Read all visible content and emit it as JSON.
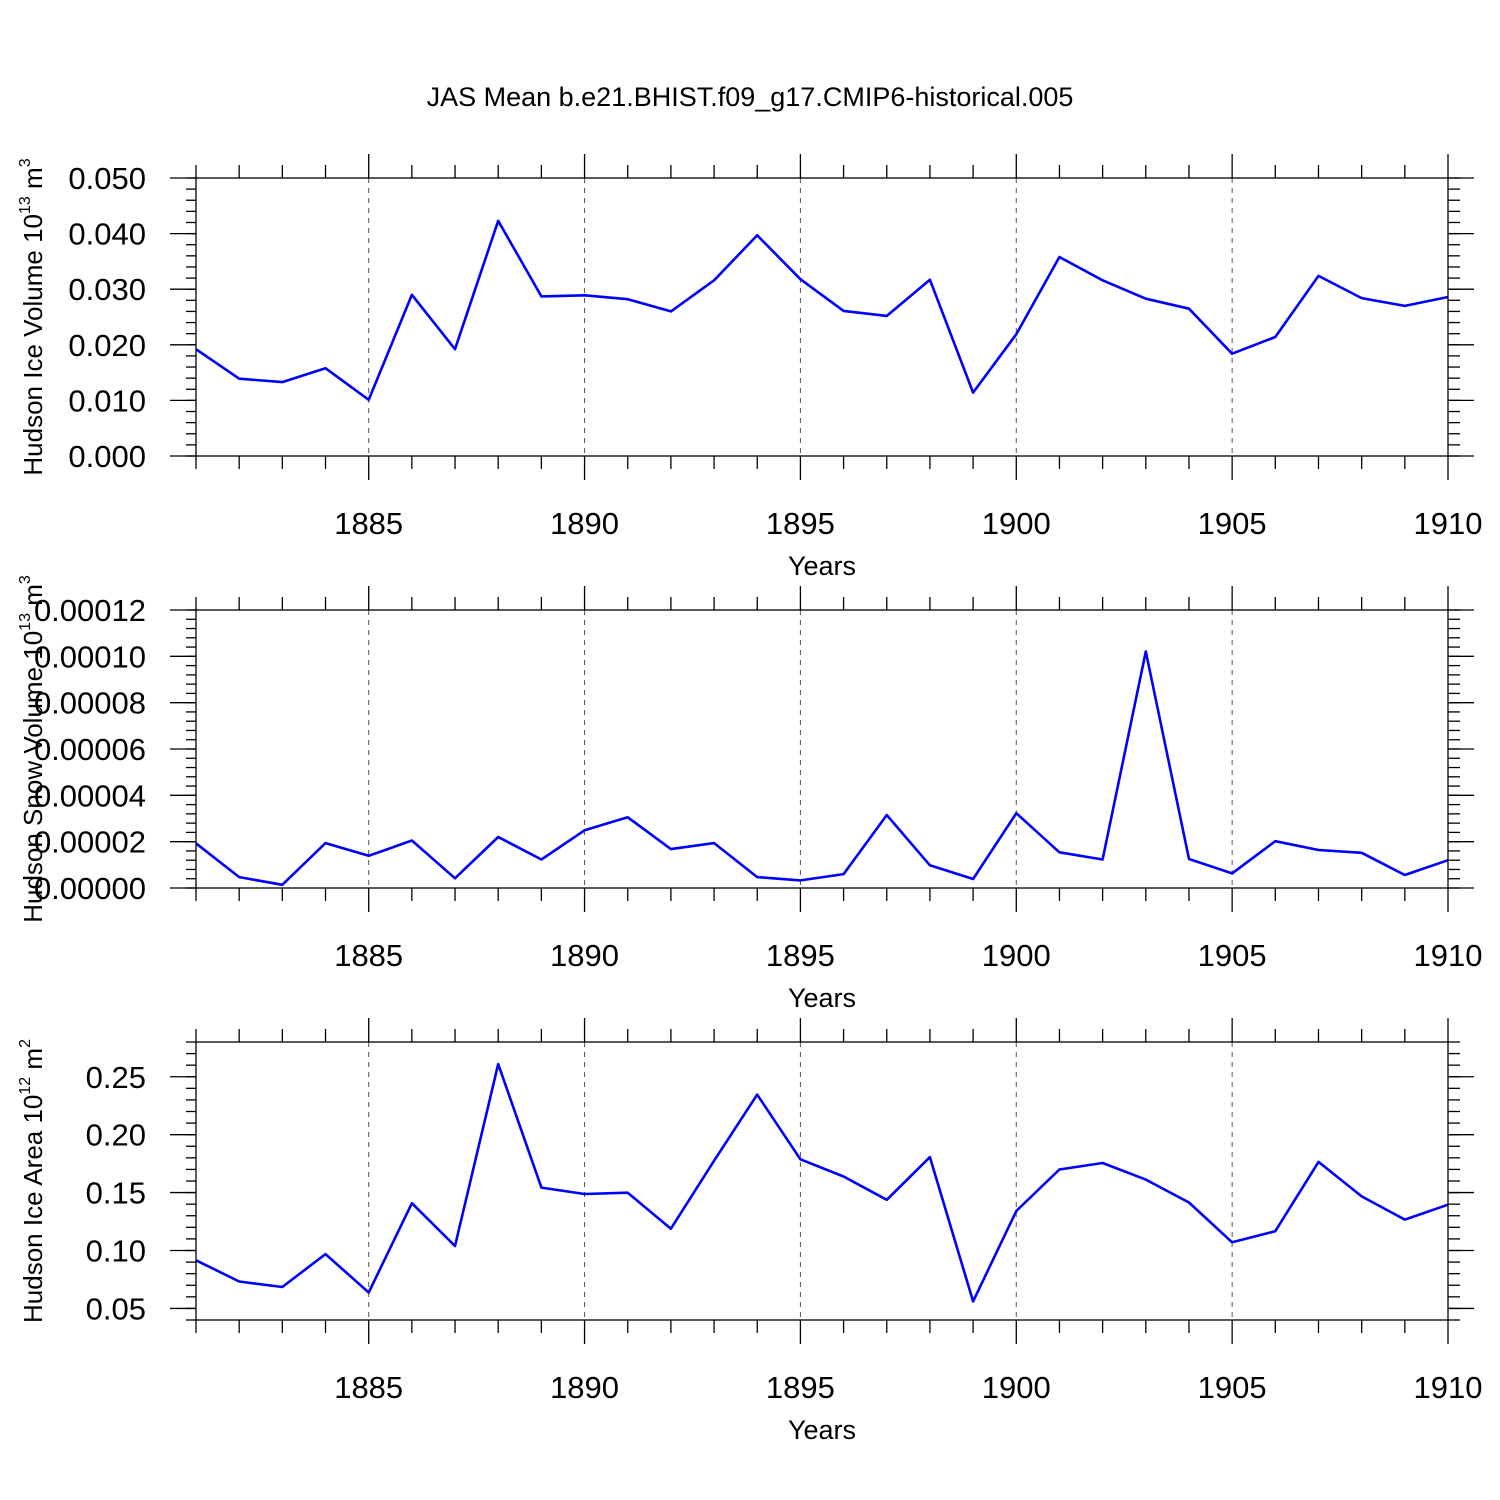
{
  "figure_title": "JAS Mean b.e21.BHIST.f09_g17.CMIP6-historical.005",
  "colors": {
    "series": "#0000ff",
    "axes": "#000000",
    "grid": "#555555"
  },
  "chart_data": [
    {
      "type": "line",
      "title": "",
      "xlabel": "Years",
      "ylabel": {
        "main": "Hudson Ice Volume 10",
        "sup": "13",
        "unit": " m",
        "unit_sup": "3"
      },
      "xlim": [
        1881,
        1910
      ],
      "ylim": [
        0,
        0.05
      ],
      "xticks": [
        1885,
        1890,
        1895,
        1900,
        1905,
        1910
      ],
      "xtick_labels": [
        "1885",
        "1890",
        "1895",
        "1900",
        "1905",
        "1910"
      ],
      "yticks": [
        0,
        0.01,
        0.02,
        0.03,
        0.04,
        0.05
      ],
      "ytick_labels": [
        "0.000",
        "0.010",
        "0.020",
        "0.030",
        "0.040",
        "0.050"
      ],
      "y_minor_step": 0.002,
      "grid": "vertical-dashed-at-major-x",
      "series": [
        {
          "name": "Hudson Ice Volume",
          "x": [
            1881,
            1882,
            1883,
            1884,
            1885,
            1886,
            1887,
            1888,
            1889,
            1890,
            1891,
            1892,
            1893,
            1894,
            1895,
            1896,
            1897,
            1898,
            1899,
            1900,
            1901,
            1902,
            1903,
            1904,
            1905,
            1906,
            1907,
            1908,
            1909,
            1910
          ],
          "values": [
            0.0192,
            0.0139,
            0.0133,
            0.0158,
            0.0101,
            0.029,
            0.0192,
            0.0423,
            0.0287,
            0.0289,
            0.0282,
            0.026,
            0.0316,
            0.0397,
            0.0318,
            0.0261,
            0.0252,
            0.0317,
            0.0114,
            0.0219,
            0.0358,
            0.0316,
            0.0283,
            0.0265,
            0.0184,
            0.0214,
            0.0324,
            0.0284,
            0.027,
            0.0286
          ]
        }
      ]
    },
    {
      "type": "line",
      "title": "",
      "xlabel": "Years",
      "ylabel": {
        "main": "Hudson Snow Volume 10",
        "sup": "13",
        "unit": " m",
        "unit_sup": "3"
      },
      "xlim": [
        1881,
        1910
      ],
      "ylim": [
        0,
        0.00012
      ],
      "xticks": [
        1885,
        1890,
        1895,
        1900,
        1905,
        1910
      ],
      "xtick_labels": [
        "1885",
        "1890",
        "1895",
        "1900",
        "1905",
        "1910"
      ],
      "yticks": [
        0,
        2e-05,
        4e-05,
        6e-05,
        8e-05,
        0.0001,
        0.00012
      ],
      "ytick_labels": [
        "0.00000",
        "0.00002",
        "0.00004",
        "0.00006",
        "0.00008",
        "0.00010",
        "0.00012"
      ],
      "y_minor_step": 4e-06,
      "grid": "vertical-dashed-at-major-x",
      "series": [
        {
          "name": "Hudson Snow Volume",
          "x": [
            1881,
            1882,
            1883,
            1884,
            1885,
            1886,
            1887,
            1888,
            1889,
            1890,
            1891,
            1892,
            1893,
            1894,
            1895,
            1896,
            1897,
            1898,
            1899,
            1900,
            1901,
            1902,
            1903,
            1904,
            1905,
            1906,
            1907,
            1908,
            1909,
            1910
          ],
          "values": [
            1.93e-05,
            4.7e-06,
            1.4e-06,
            1.94e-05,
            1.39e-05,
            2.05e-05,
            4.2e-06,
            2.2e-05,
            1.23e-05,
            2.49e-05,
            3.05e-05,
            1.68e-05,
            1.94e-05,
            4.7e-06,
            3.3e-06,
            6e-06,
            3.15e-05,
            9.8e-06,
            3.9e-06,
            3.23e-05,
            1.54e-05,
            1.23e-05,
            0.0001021,
            1.25e-05,
            6.3e-06,
            2.02e-05,
            1.64e-05,
            1.52e-05,
            5.6e-06,
            1.2e-05
          ]
        }
      ]
    },
    {
      "type": "line",
      "title": "",
      "xlabel": "Years",
      "ylabel": {
        "main": "Hudson Ice Area 10",
        "sup": "12",
        "unit": " m",
        "unit_sup": "2"
      },
      "xlim": [
        1881,
        1910
      ],
      "ylim": [
        0.04,
        0.28
      ],
      "xticks": [
        1885,
        1890,
        1895,
        1900,
        1905,
        1910
      ],
      "xtick_labels": [
        "1885",
        "1890",
        "1895",
        "1900",
        "1905",
        "1910"
      ],
      "yticks": [
        0.05,
        0.1,
        0.15,
        0.2,
        0.25
      ],
      "ytick_labels": [
        "0.05",
        "0.10",
        "0.15",
        "0.20",
        "0.25"
      ],
      "y_minor_step": 0.01,
      "grid": "vertical-dashed-at-major-x",
      "series": [
        {
          "name": "Hudson Ice Area",
          "x": [
            1881,
            1882,
            1883,
            1884,
            1885,
            1886,
            1887,
            1888,
            1889,
            1890,
            1891,
            1892,
            1893,
            1894,
            1895,
            1896,
            1897,
            1898,
            1899,
            1900,
            1901,
            1902,
            1903,
            1904,
            1905,
            1906,
            1907,
            1908,
            1909,
            1910
          ],
          "values": [
            0.0915,
            0.0732,
            0.0685,
            0.0969,
            0.0637,
            0.1408,
            0.1039,
            0.2609,
            0.1543,
            0.1488,
            0.1499,
            0.1188,
            0.1775,
            0.2346,
            0.1787,
            0.1639,
            0.1438,
            0.1806,
            0.0561,
            0.1341,
            0.1699,
            0.1755,
            0.1612,
            0.1414,
            0.1071,
            0.1167,
            0.1765,
            0.1467,
            0.1267,
            0.1395
          ]
        }
      ]
    }
  ]
}
